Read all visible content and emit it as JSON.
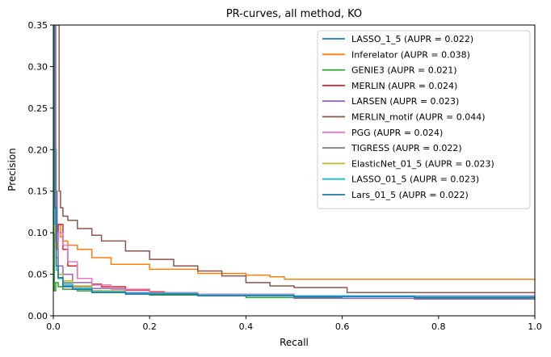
{
  "chart_data": {
    "type": "line",
    "title": "PR-curves, all method, KO",
    "xlabel": "Recall",
    "ylabel": "Precision",
    "xlim": [
      0,
      1
    ],
    "ylim": [
      0,
      0.35
    ],
    "xticks": [
      "0.0",
      "0.2",
      "0.4",
      "0.6",
      "0.8",
      "1.0"
    ],
    "yticks": [
      "0.00",
      "0.05",
      "0.10",
      "0.15",
      "0.20",
      "0.25",
      "0.30",
      "0.35"
    ],
    "grid": false,
    "legend_position": "top-right",
    "series": [
      {
        "name": "LASSO_1_5 (AUPR = 0.022)",
        "color": "#1f77b4",
        "x": [
          0.0,
          0.003,
          0.006,
          0.01,
          0.02,
          0.04,
          0.08,
          0.15,
          0.3,
          0.5,
          0.75,
          1.0
        ],
        "y": [
          0.35,
          0.12,
          0.06,
          0.045,
          0.035,
          0.032,
          0.028,
          0.026,
          0.024,
          0.023,
          0.022,
          0.022
        ]
      },
      {
        "name": "Inferelator (AUPR = 0.038)",
        "color": "#ff7f0e",
        "x": [
          0.0,
          0.005,
          0.01,
          0.015,
          0.02,
          0.03,
          0.05,
          0.08,
          0.12,
          0.2,
          0.3,
          0.4,
          0.45,
          0.48,
          0.6,
          1.0
        ],
        "y": [
          0.35,
          0.08,
          0.11,
          0.095,
          0.09,
          0.085,
          0.08,
          0.07,
          0.062,
          0.056,
          0.051,
          0.049,
          0.047,
          0.044,
          0.044,
          0.044
        ]
      },
      {
        "name": "GENIE3 (AUPR = 0.021)",
        "color": "#2ca02c",
        "x": [
          0.0,
          0.002,
          0.005,
          0.01,
          0.02,
          0.05,
          0.1,
          0.2,
          0.4,
          0.6,
          1.0
        ],
        "y": [
          0.35,
          0.03,
          0.04,
          0.035,
          0.032,
          0.03,
          0.028,
          0.025,
          0.022,
          0.021,
          0.021
        ]
      },
      {
        "name": "MERLIN (AUPR = 0.024)",
        "color": "#d62728",
        "x": [
          0.0,
          0.005,
          0.01,
          0.02,
          0.03,
          0.05,
          0.08,
          0.1,
          0.15,
          0.2,
          0.23
        ],
        "y": [
          0.35,
          0.09,
          0.11,
          0.08,
          0.06,
          0.045,
          0.038,
          0.035,
          0.031,
          0.029,
          0.028
        ]
      },
      {
        "name": "LARSEN (AUPR = 0.023)",
        "color": "#9467bd",
        "x": [
          0.0,
          0.004,
          0.008,
          0.01,
          0.02,
          0.04,
          0.08,
          0.15,
          0.3,
          0.5,
          0.75,
          1.0
        ],
        "y": [
          0.35,
          0.15,
          0.08,
          0.06,
          0.05,
          0.04,
          0.033,
          0.028,
          0.024,
          0.021,
          0.02,
          0.02
        ]
      },
      {
        "name": "MERLIN_motif (AUPR = 0.044)",
        "color": "#8c564b",
        "x": [
          0.0,
          0.01,
          0.012,
          0.015,
          0.02,
          0.03,
          0.05,
          0.08,
          0.1,
          0.15,
          0.2,
          0.25,
          0.3,
          0.35,
          0.4,
          0.45,
          0.5,
          0.55,
          0.6,
          0.61,
          1.0
        ],
        "y": [
          0.35,
          0.35,
          0.15,
          0.13,
          0.12,
          0.115,
          0.105,
          0.097,
          0.09,
          0.078,
          0.068,
          0.06,
          0.054,
          0.048,
          0.04,
          0.036,
          0.034,
          0.034,
          0.034,
          0.028,
          0.028
        ]
      },
      {
        "name": "PGG (AUPR = 0.024)",
        "color": "#e377c2",
        "x": [
          0.0,
          0.005,
          0.01,
          0.02,
          0.03,
          0.05,
          0.08,
          0.12,
          0.2,
          0.3,
          0.5,
          1.0
        ],
        "y": [
          0.35,
          0.09,
          0.1,
          0.085,
          0.065,
          0.045,
          0.037,
          0.032,
          0.028,
          0.026,
          0.024,
          0.024
        ]
      },
      {
        "name": "TIGRESS (AUPR = 0.022)",
        "color": "#7f7f7f",
        "x": [
          0.0,
          0.003,
          0.006,
          0.01,
          0.02,
          0.04,
          0.08,
          0.15,
          0.3,
          0.5,
          0.75,
          1.0
        ],
        "y": [
          0.35,
          0.2,
          0.07,
          0.05,
          0.04,
          0.035,
          0.03,
          0.027,
          0.024,
          0.023,
          0.022,
          0.022
        ]
      },
      {
        "name": "ElasticNet_01_5 (AUPR = 0.023)",
        "color": "#bcbd22",
        "x": [
          0.0,
          0.003,
          0.006,
          0.01,
          0.02,
          0.04,
          0.08,
          0.15,
          0.3,
          0.5,
          0.75,
          1.0
        ],
        "y": [
          0.35,
          0.1,
          0.06,
          0.05,
          0.042,
          0.036,
          0.03,
          0.027,
          0.025,
          0.024,
          0.023,
          0.023
        ]
      },
      {
        "name": "LASSO_01_5 (AUPR = 0.023)",
        "color": "#17becf",
        "x": [
          0.0,
          0.003,
          0.006,
          0.01,
          0.02,
          0.04,
          0.08,
          0.15,
          0.3,
          0.5,
          0.75,
          1.0
        ],
        "y": [
          0.35,
          0.11,
          0.055,
          0.045,
          0.038,
          0.033,
          0.029,
          0.027,
          0.025,
          0.024,
          0.023,
          0.023
        ]
      },
      {
        "name": "Lars_01_5 (AUPR = 0.022)",
        "color": "#1f77b4",
        "x": [
          0.0,
          0.003,
          0.006,
          0.01,
          0.02,
          0.04,
          0.08,
          0.15,
          0.3,
          0.5,
          0.75,
          1.0
        ],
        "y": [
          0.35,
          0.13,
          0.06,
          0.046,
          0.036,
          0.032,
          0.028,
          0.026,
          0.024,
          0.023,
          0.022,
          0.022
        ]
      }
    ]
  }
}
